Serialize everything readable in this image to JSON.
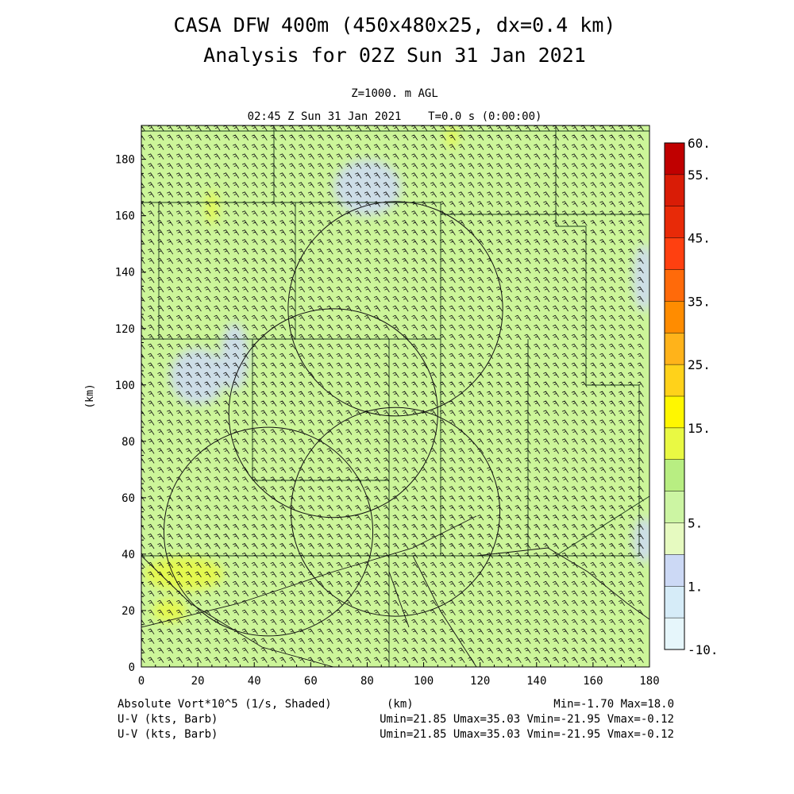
{
  "title_line1": "CASA DFW 400m (450x480x25, dx=0.4 km)",
  "title_line2": "Analysis for 02Z Sun 31 Jan 2021",
  "subtitle_level": "Z=1000. m AGL",
  "subtitle_time": "02:45 Z Sun 31 Jan 2021    T=0.0 s (0:00:00)",
  "footer": {
    "field_label": "Absolute Vort*10^5 (1/s, Shaded)",
    "xunit": "(km)",
    "minmax": "Min=-1.70 Max=18.0",
    "barb_label_1": "U-V (kts, Barb)",
    "barb_stats_1": "Umin=21.85 Umax=35.03 Vmin=-21.95 Vmax=-0.12",
    "barb_label_2": "U-V (kts, Barb)",
    "barb_stats_2": "Umin=21.85 Umax=35.03 Vmin=-21.95 Vmax=-0.12"
  },
  "chart_data": {
    "type": "heatmap",
    "title": "CASA DFW 400m (450x480x25, dx=0.4 km)",
    "xlabel": "(km)",
    "ylabel": "(km)",
    "xlim": [
      0,
      180
    ],
    "ylim": [
      0,
      192
    ],
    "xticks": [
      0,
      20,
      40,
      60,
      80,
      100,
      120,
      140,
      160,
      180
    ],
    "yticks": [
      0,
      20,
      40,
      60,
      80,
      100,
      120,
      140,
      160,
      180
    ],
    "field": "Absolute Vort*10^5 (1/s)",
    "field_min": -1.7,
    "field_max": 18.0,
    "dominant_color": "#ccf599",
    "colorbar": {
      "levels": [
        -10,
        -1,
        1,
        2.5,
        5,
        7.5,
        10,
        15,
        20,
        25,
        30,
        35,
        40,
        45,
        50,
        55,
        60
      ],
      "colors": [
        "#e6f6fb",
        "#d6ecf8",
        "#ccd9f5",
        "#e6fac0",
        "#ccf5a3",
        "#b8ee82",
        "#e9f943",
        "#fff700",
        "#ffd21a",
        "#ffb31a",
        "#ff8c00",
        "#ff6a0a",
        "#ff4010",
        "#e82a08",
        "#d91c06",
        "#c00000"
      ],
      "labels": [
        {
          "value": -10,
          "text": "-10."
        },
        {
          "value": 1,
          "text": "1."
        },
        {
          "value": 5,
          "text": "5."
        },
        {
          "value": 15,
          "text": "15."
        },
        {
          "value": 25,
          "text": "25."
        },
        {
          "value": 35,
          "text": "35."
        },
        {
          "value": 45,
          "text": "45."
        },
        {
          "value": 55,
          "text": "55."
        },
        {
          "value": 60,
          "text": "60."
        }
      ]
    },
    "shaded_regions": [
      {
        "level": "low",
        "color": "#ccd9f5",
        "center": [
          20,
          103
        ],
        "radius": [
          10,
          10
        ]
      },
      {
        "level": "low",
        "color": "#ccd9f5",
        "center": [
          33,
          110
        ],
        "radius": [
          5,
          12
        ]
      },
      {
        "level": "low",
        "color": "#ccd9f5",
        "center": [
          80,
          170
        ],
        "radius": [
          12,
          10
        ]
      },
      {
        "level": "low",
        "color": "#ccd9f5",
        "center": [
          178,
          138
        ],
        "radius": [
          4,
          12
        ]
      },
      {
        "level": "low",
        "color": "#ccd9f5",
        "center": [
          178,
          45
        ],
        "radius": [
          4,
          8
        ]
      },
      {
        "level": "high",
        "color": "#e9f943",
        "center": [
          15,
          33
        ],
        "radius": [
          14,
          6
        ]
      },
      {
        "level": "high",
        "color": "#e9f943",
        "center": [
          10,
          20
        ],
        "radius": [
          6,
          4
        ]
      },
      {
        "level": "high",
        "color": "#e9f943",
        "center": [
          25,
          163
        ],
        "radius": [
          2,
          6
        ]
      },
      {
        "level": "high",
        "color": "#e9f943",
        "center": [
          110,
          188
        ],
        "radius": [
          2,
          4
        ]
      }
    ],
    "radar_rings": [
      {
        "center": [
          90,
          127
        ],
        "radius": 38
      },
      {
        "center": [
          68,
          90
        ],
        "radius": 37
      },
      {
        "center": [
          45,
          48
        ],
        "radius": 37
      },
      {
        "center": [
          90,
          55
        ],
        "radius": 37
      }
    ],
    "wind_barbs": {
      "units": "kts",
      "u_range": [
        21.85,
        35.03
      ],
      "v_range": [
        -21.95,
        -0.12
      ]
    }
  }
}
